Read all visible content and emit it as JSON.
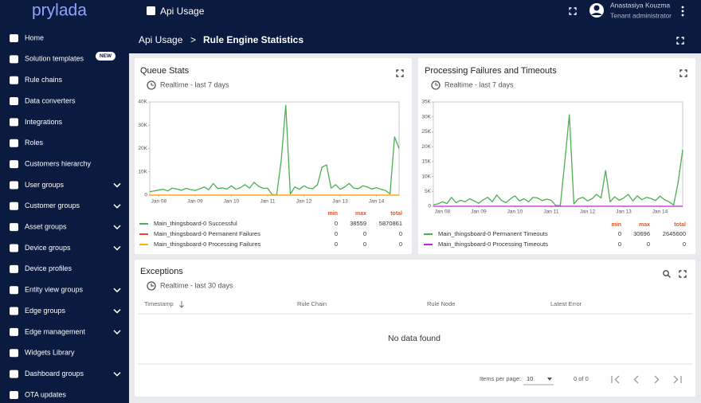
{
  "logo": "prylada",
  "header": {
    "title": "Api Usage",
    "user_name": "Anastasiya Kouzma",
    "user_role": "Tenant administrator"
  },
  "breadcrumb": {
    "parent": "Api Usage",
    "separator": ">",
    "current": "Rule Engine Statistics"
  },
  "sidebar": {
    "items": [
      "Home",
      "Solution templates",
      "Rule chains",
      "Data converters",
      "Integrations",
      "Roles",
      "Customers hierarchy",
      "User groups",
      "Customer groups",
      "Asset groups",
      "Device groups",
      "Device profiles",
      "Entity view groups",
      "Edge groups",
      "Edge management",
      "Widgets Library",
      "Dashboard groups",
      "OTA updates"
    ],
    "badge": "NEW"
  },
  "chart_data": [
    {
      "type": "line",
      "title": "Queue Stats",
      "subtitle": "Realtime - last 7 days",
      "categories": [
        null,
        null,
        "Jan 08",
        null,
        null,
        null,
        null,
        null,
        null,
        null,
        "Jan 09",
        null,
        null,
        null,
        null,
        null,
        null,
        null,
        "Jan 10",
        null,
        null,
        null,
        null,
        null,
        null,
        null,
        "Jan 11",
        null,
        null,
        null,
        null,
        null,
        null,
        null,
        "Jan 12",
        null,
        null,
        null,
        null,
        null,
        null,
        null,
        "Jan 13",
        null,
        null,
        null,
        null,
        null,
        null,
        null,
        "Jan 14",
        null,
        null,
        null,
        null,
        null
      ],
      "ylim": [
        0,
        40000
      ],
      "yticks": [
        0,
        {
          "value": 10000,
          "label": "10K"
        },
        {
          "value": 20000,
          "label": "20K"
        },
        {
          "value": 30000,
          "label": "30K"
        },
        {
          "value": 40000,
          "label": "40K"
        }
      ],
      "legend_columns": [
        "min",
        "max",
        "total"
      ],
      "series": [
        {
          "name": "Main_thingsboard-0 Successful",
          "color": "#4caf50",
          "min": 0,
          "max": 38559,
          "total": 5870861,
          "values": [
            1500,
            1800,
            2200,
            2500,
            1800,
            3000,
            2600,
            2100,
            2900,
            2400,
            2000,
            2700,
            3500,
            2300,
            5000,
            2800,
            3100,
            2600,
            4000,
            2500,
            3200,
            4500,
            3000,
            5500,
            3800,
            2900,
            3000,
            200,
            100,
            15000,
            38559,
            500,
            3500,
            2500,
            4000,
            3000,
            2800,
            4500,
            12000,
            13000,
            3000,
            4500,
            2500,
            3500,
            5000,
            3000,
            2800,
            4000,
            3500,
            2600,
            3200,
            2500,
            2000,
            500,
            25000,
            20000
          ]
        },
        {
          "name": "Main_thingsboard-0 Permanent Failures",
          "color": "#f44336",
          "min": 0,
          "max": 0,
          "total": 0,
          "values": [
            0,
            0,
            0,
            0,
            0,
            0,
            0,
            0,
            0,
            0,
            0,
            0,
            0,
            0,
            0,
            0,
            0,
            0,
            0,
            0,
            0,
            0,
            0,
            0,
            0,
            0,
            0,
            0,
            0,
            0,
            0,
            0,
            0,
            0,
            0,
            0,
            0,
            0,
            0,
            0,
            0,
            0,
            0,
            0,
            0,
            0,
            0,
            0,
            0,
            0,
            0,
            0,
            0,
            0,
            0,
            0
          ]
        },
        {
          "name": "Main_thingsboard-0 Processing Failures",
          "color": "#ffb300",
          "min": 0,
          "max": 0,
          "total": 0,
          "values": [
            0,
            0,
            0,
            0,
            0,
            0,
            0,
            0,
            0,
            0,
            0,
            0,
            0,
            0,
            0,
            0,
            0,
            0,
            0,
            0,
            0,
            0,
            0,
            0,
            0,
            0,
            0,
            0,
            0,
            0,
            0,
            0,
            0,
            0,
            0,
            0,
            0,
            0,
            0,
            0,
            0,
            0,
            0,
            0,
            0,
            0,
            0,
            0,
            0,
            0,
            0,
            0,
            0,
            0,
            0,
            0
          ]
        }
      ]
    },
    {
      "type": "line",
      "title": "Processing Failures and Timeouts",
      "subtitle": "Realtime - last 7 days",
      "categories": [
        null,
        null,
        "Jan 08",
        null,
        null,
        null,
        null,
        null,
        null,
        null,
        "Jan 09",
        null,
        null,
        null,
        null,
        null,
        null,
        null,
        "Jan 10",
        null,
        null,
        null,
        null,
        null,
        null,
        null,
        "Jan 11",
        null,
        null,
        null,
        null,
        null,
        null,
        null,
        "Jan 12",
        null,
        null,
        null,
        null,
        null,
        null,
        null,
        "Jan 13",
        null,
        null,
        null,
        null,
        null,
        null,
        null,
        "Jan 14",
        null,
        null,
        null,
        null,
        null
      ],
      "ylim": [
        0,
        35000
      ],
      "yticks": [
        0,
        {
          "value": 5000,
          "label": "5K"
        },
        {
          "value": 10000,
          "label": "10K"
        },
        {
          "value": 15000,
          "label": "15K"
        },
        {
          "value": 20000,
          "label": "20K"
        },
        {
          "value": 25000,
          "label": "25K"
        },
        {
          "value": 30000,
          "label": "30K"
        },
        {
          "value": 35000,
          "label": "35K"
        }
      ],
      "legend_columns": [
        "min",
        "max",
        "total"
      ],
      "series": [
        {
          "name": "Main_thingsboard-0 Permanent Timeouts",
          "color": "#4caf50",
          "min": 0,
          "max": 30696,
          "total": 2645600,
          "values": [
            500,
            800,
            1500,
            900,
            3000,
            1200,
            2000,
            1500,
            2500,
            1800,
            1000,
            2200,
            3000,
            1500,
            3800,
            2000,
            1200,
            2500,
            3500,
            1800,
            2500,
            1500,
            3000,
            2800,
            1900,
            2400,
            2000,
            300,
            200,
            15000,
            30696,
            800,
            2500,
            3000,
            1800,
            2500,
            4000,
            2800,
            12000,
            1500,
            3200,
            2000,
            2800,
            4000,
            1800,
            3500,
            2200,
            3000,
            2600,
            1900,
            3400,
            2200,
            1500,
            400,
            8000,
            19000
          ]
        },
        {
          "name": "Main_thingsboard-0 Processing Timeouts",
          "color": "#c026d3",
          "min": 0,
          "max": 0,
          "total": 0,
          "values": [
            0,
            0,
            0,
            0,
            0,
            0,
            0,
            0,
            0,
            0,
            0,
            0,
            0,
            0,
            0,
            0,
            0,
            0,
            0,
            0,
            0,
            0,
            0,
            0,
            0,
            0,
            0,
            0,
            0,
            0,
            0,
            0,
            0,
            0,
            0,
            0,
            0,
            0,
            0,
            0,
            0,
            0,
            0,
            0,
            0,
            0,
            0,
            0,
            0,
            0,
            0,
            0,
            0,
            0,
            0,
            0
          ]
        }
      ]
    }
  ],
  "exceptions": {
    "title": "Exceptions",
    "subtitle": "Realtime - last 30 days",
    "columns": [
      "Timestamp",
      "Rule Chain",
      "Rule Node",
      "Latest Error"
    ],
    "empty_message": "No data found",
    "items_per_page_label": "Items per page:",
    "items_per_page": 10,
    "range_label": "0 of 0"
  }
}
